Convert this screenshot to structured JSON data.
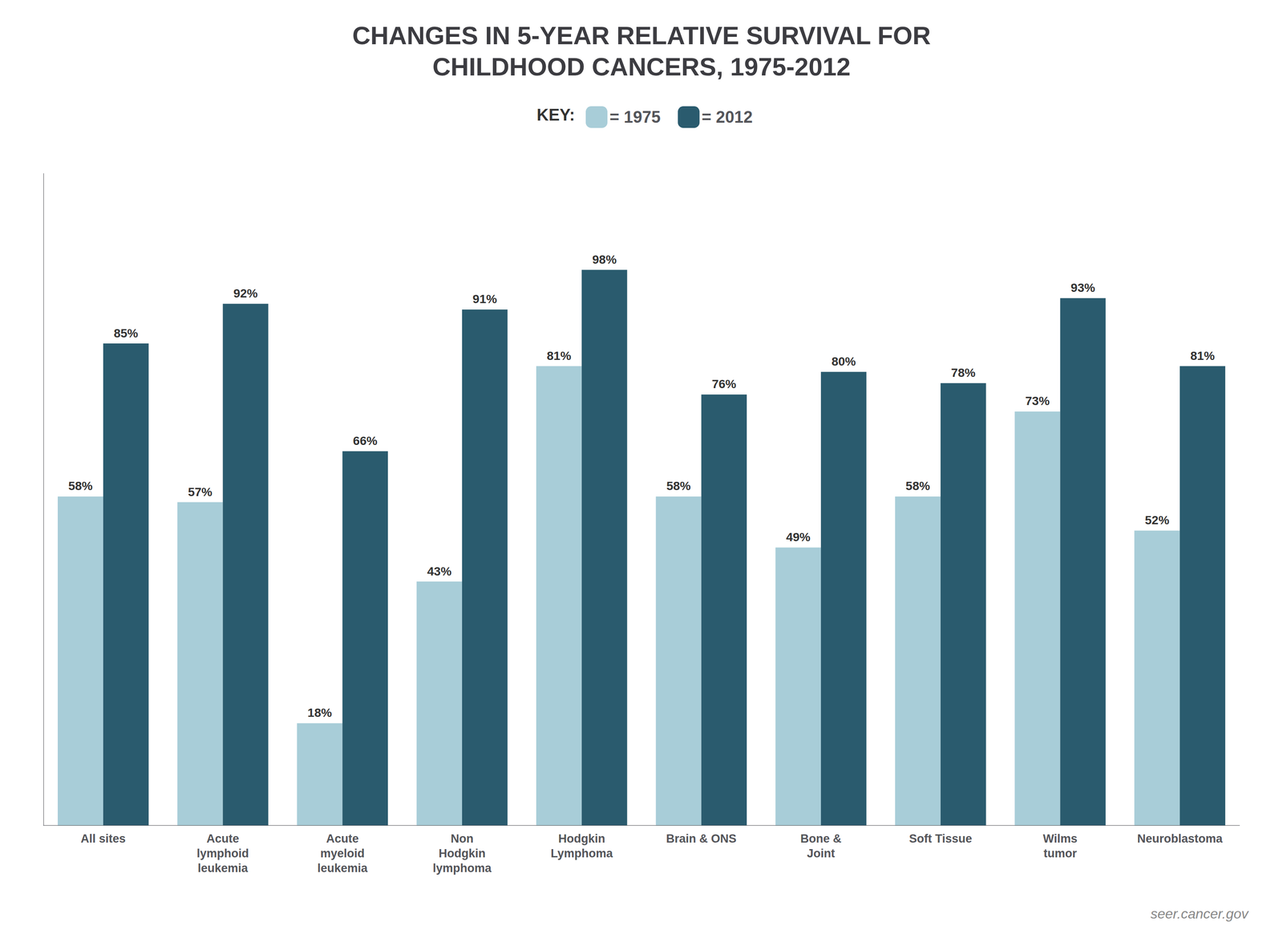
{
  "chart_data": {
    "type": "bar",
    "title": "CHANGES IN 5-YEAR RELATIVE SURVIVAL FOR\nCHILDHOOD CANCERS, 1975-2012",
    "legend_title": "KEY:",
    "annotations": [
      "seer.cancer.gov"
    ],
    "categories": [
      "All sites",
      "Acute\nlymphoid\nleukemia",
      "Acute\nmyeloid\nleukemia",
      "Non\nHodgkin\nlymphoma",
      "Hodgkin\nLymphoma",
      "Brain & ONS",
      "Bone &\nJoint",
      "Soft Tissue",
      "Wilms\ntumor",
      "Neuroblastoma"
    ],
    "series": [
      {
        "name": "= 1975",
        "color": "#a8cdd8",
        "values": [
          58,
          57,
          18,
          43,
          81,
          58,
          49,
          58,
          73,
          52
        ],
        "value_labels": [
          "58%",
          "57%",
          "18%",
          "43%",
          "81%",
          "58%",
          "49%",
          "58%",
          "73%",
          "52%"
        ]
      },
      {
        "name": "= 2012",
        "color": "#2a5b6e",
        "values": [
          85,
          92,
          66,
          91,
          98,
          76,
          80,
          78,
          93,
          81
        ],
        "value_labels": [
          "85%",
          "92%",
          "66%",
          "91%",
          "98%",
          "76%",
          "80%",
          "78%",
          "93%",
          "81%"
        ]
      }
    ],
    "ylim": [
      0,
      115
    ],
    "grid": false,
    "legend": "top",
    "data_labels": true,
    "tick_labels": "x"
  }
}
